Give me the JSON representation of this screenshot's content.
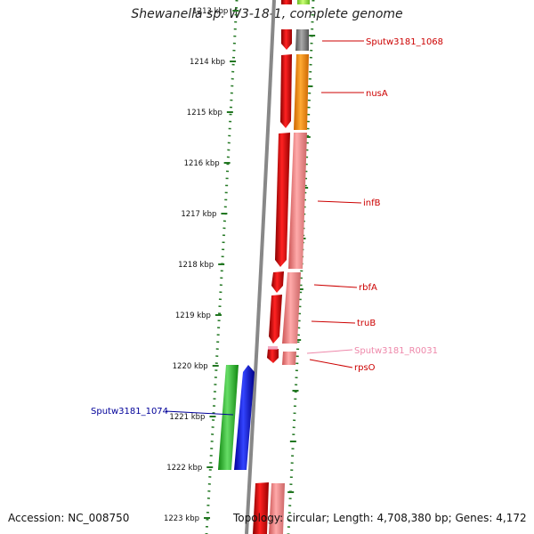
{
  "title": "Shewanella sp. W3-18-1, complete genome",
  "accession": "Accession: NC_008750",
  "topology_info": "Topology: circular; Length: 4,708,380 bp; Genes: 4,172",
  "ticks": [
    "1213 kbp",
    "1214 kbp",
    "1215 kbp",
    "1216 kbp",
    "1217 kbp",
    "1218 kbp",
    "1219 kbp",
    "1220 kbp",
    "1221 kbp",
    "1222 kbp",
    "1223 kbp"
  ],
  "genes": [
    {
      "label": "Sputw3181_1068",
      "color": "#cc0000"
    },
    {
      "label": "nusA",
      "color": "#cc0000"
    },
    {
      "label": "infB",
      "color": "#cc0000"
    },
    {
      "label": "rbfA",
      "color": "#cc0000"
    },
    {
      "label": "truB",
      "color": "#cc0000"
    },
    {
      "label": "Sputw3181_R0031",
      "color": "#ee88aa"
    },
    {
      "label": "rpsO",
      "color": "#cc0000"
    },
    {
      "label": "Sputw3181_1074",
      "color": "#000099"
    }
  ],
  "colors": {
    "forward_gene": "#dd0000",
    "reverse_gene": "#0000ee",
    "cds_orange": "#ff8800",
    "cds_pink": "#ee8888",
    "cds_green": "#33bb33",
    "cds_gray": "#777777",
    "cds_lime": "#99ee44",
    "tick": "#227722",
    "backbone": "#888888"
  }
}
